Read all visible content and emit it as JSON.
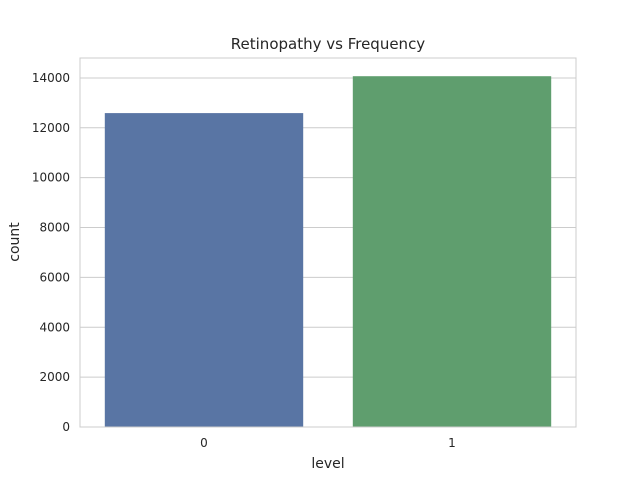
{
  "chart_data": {
    "type": "bar",
    "title": "Retinopathy vs Frequency",
    "xlabel": "level",
    "ylabel": "count",
    "categories": [
      "0",
      "1"
    ],
    "values": [
      12590,
      14070
    ],
    "colors": [
      "#5975a4",
      "#5f9e6e"
    ],
    "ylim": [
      0,
      14800
    ],
    "yticks": [
      0,
      2000,
      4000,
      6000,
      8000,
      10000,
      12000,
      14000
    ],
    "grid": true,
    "legend": "none"
  }
}
